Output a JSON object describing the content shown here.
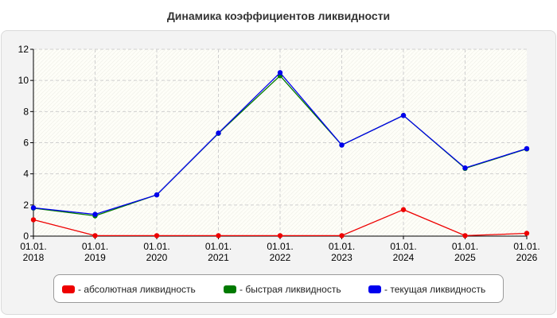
{
  "chart_data": {
    "type": "line",
    "title": "Динамика коэффициентов ликвидности",
    "xlabel": "",
    "ylabel": "",
    "categories": [
      "01.01.\n2018",
      "01.01.\n2019",
      "01.01.\n2020",
      "01.01.\n2021",
      "01.01.\n2022",
      "01.01.\n2023",
      "01.01.\n2024",
      "01.01.\n2025",
      "01.01.\n2026"
    ],
    "ylim": [
      0,
      12
    ],
    "yticks": [
      0,
      2,
      4,
      6,
      8,
      10,
      12
    ],
    "grid": true,
    "legend_position": "bottom",
    "series": [
      {
        "name": "- абсолютная ликвидность",
        "color": "#ee0000",
        "values": [
          1.05,
          0.03,
          0.03,
          0.03,
          0.03,
          0.03,
          1.7,
          0.03,
          0.18
        ]
      },
      {
        "name": "- быстрая ликвидность",
        "color": "#007a00",
        "values": [
          1.8,
          1.3,
          2.65,
          6.6,
          10.3,
          5.85,
          7.75,
          4.35,
          5.6
        ]
      },
      {
        "name": "- текущая ликвидность",
        "color": "#0000ee",
        "values": [
          1.82,
          1.4,
          2.65,
          6.62,
          10.5,
          5.85,
          7.75,
          4.38,
          5.62
        ]
      }
    ]
  }
}
